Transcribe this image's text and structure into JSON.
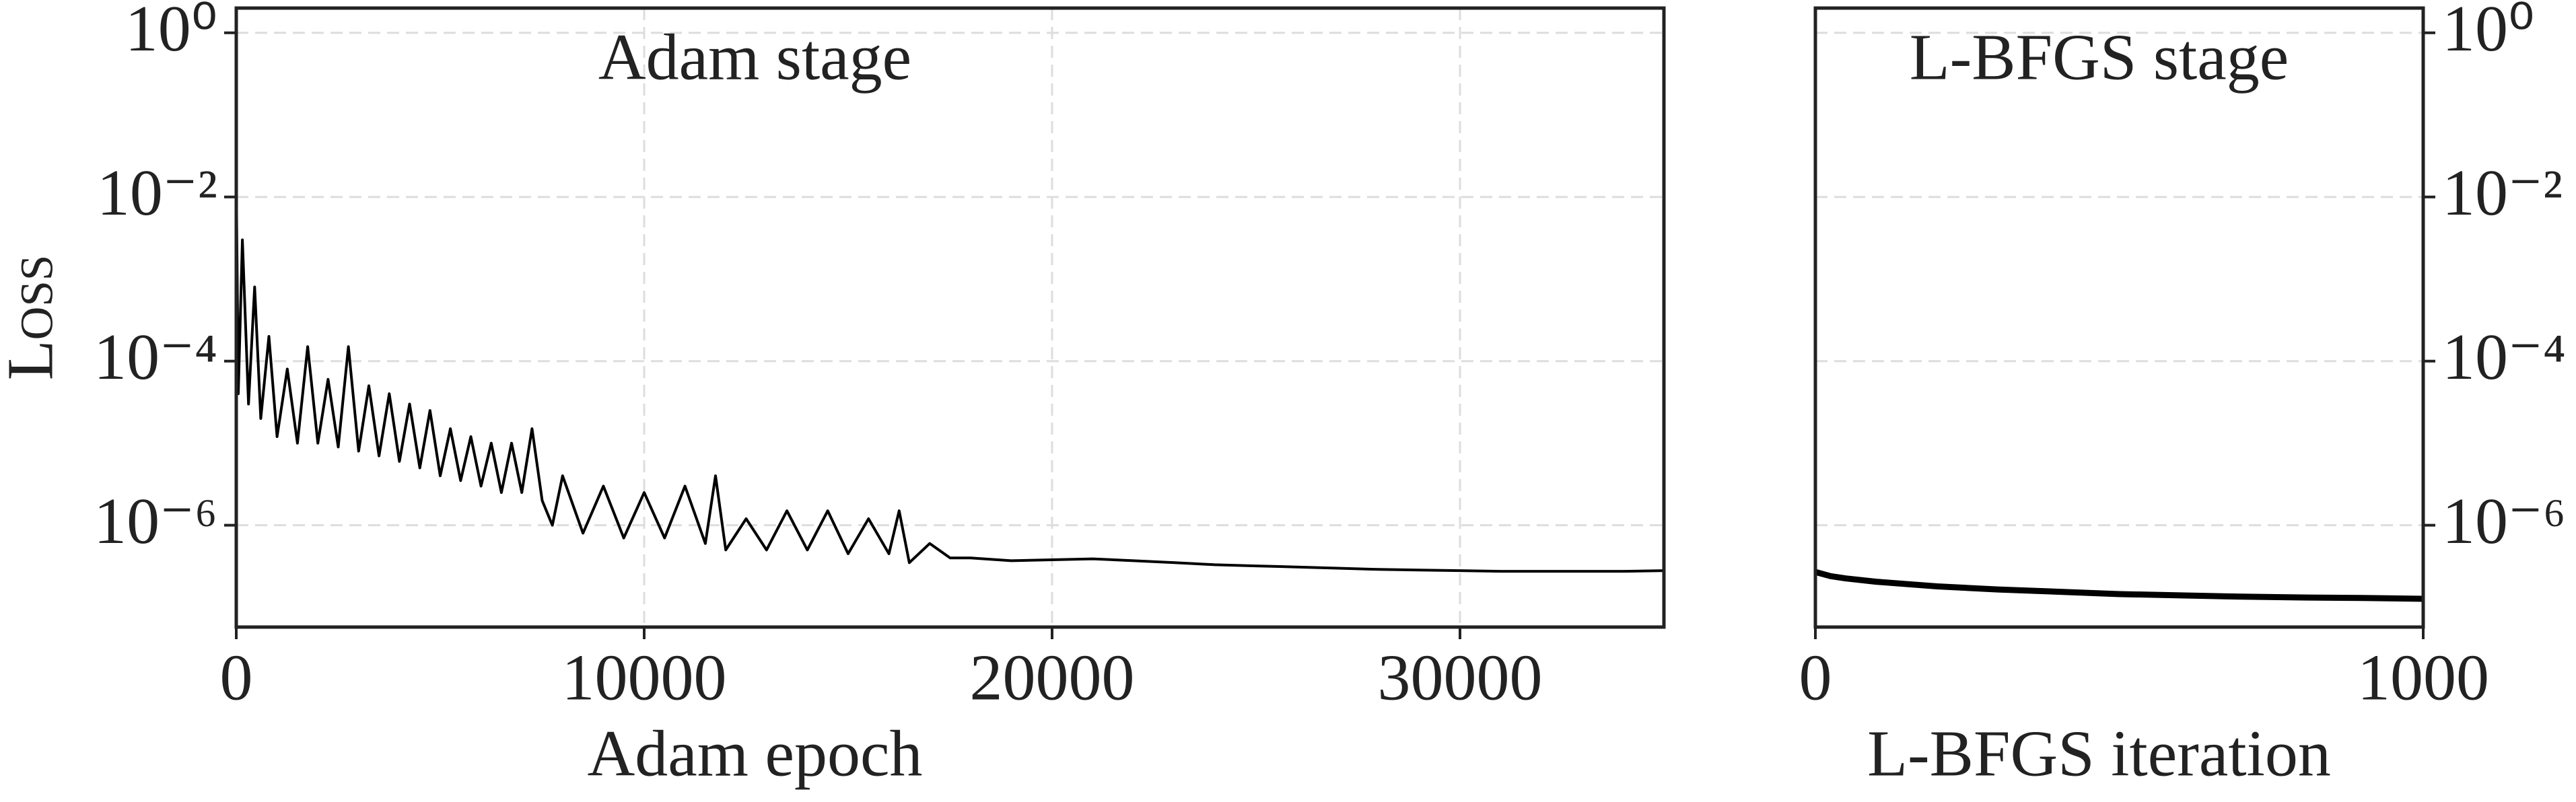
{
  "chart_data": [
    {
      "type": "line",
      "title": "Adam stage",
      "x_label": "Adam epoch",
      "y_label": "Loss",
      "yscale": "log",
      "grid": true,
      "ytick_side": "left",
      "xlim": [
        0,
        35000
      ],
      "xticks": [
        0,
        10000,
        20000,
        30000
      ],
      "ylim": [
        5.75e-08,
        2
      ],
      "yticks": [
        {
          "value": 1,
          "label": "10⁰"
        },
        {
          "value": 0.01,
          "label": "10⁻²"
        },
        {
          "value": 0.0001,
          "label": "10⁻⁴"
        },
        {
          "value": 1e-06,
          "label": "10⁻⁶"
        }
      ],
      "x": [
        0,
        50,
        150,
        300,
        450,
        600,
        800,
        1000,
        1250,
        1500,
        1750,
        2000,
        2250,
        2500,
        2750,
        3000,
        3250,
        3500,
        3750,
        4000,
        4250,
        4500,
        4750,
        5000,
        5250,
        5500,
        5750,
        6000,
        6250,
        6500,
        6750,
        7000,
        7250,
        7500,
        7750,
        8000,
        8500,
        9000,
        9500,
        10000,
        10500,
        11000,
        11500,
        11750,
        12000,
        12500,
        13000,
        13500,
        14000,
        14500,
        15000,
        15500,
        16000,
        16250,
        16500,
        17000,
        17500,
        18000,
        19000,
        20000,
        21000,
        22000,
        23000,
        24000,
        25000,
        26000,
        27000,
        28000,
        29000,
        30000,
        31000,
        32000,
        33000,
        34000,
        35000
      ],
      "series": [
        {
          "color": "#000000",
          "values": [
            0.018,
            4e-05,
            0.003,
            3e-05,
            0.0008,
            2e-05,
            0.0002,
            1.2e-05,
            8e-05,
            1e-05,
            0.00015,
            1e-05,
            6e-05,
            9e-06,
            0.00015,
            8e-06,
            5e-05,
            7e-06,
            4e-05,
            6e-06,
            3e-05,
            5e-06,
            2.5e-05,
            4e-06,
            1.5e-05,
            3.5e-06,
            1.2e-05,
            3e-06,
            1e-05,
            2.5e-06,
            1e-05,
            2.5e-06,
            1.5e-05,
            2e-06,
            1e-06,
            4e-06,
            8e-07,
            3e-06,
            7e-07,
            2.5e-06,
            7e-07,
            3e-06,
            6e-07,
            4e-06,
            5e-07,
            1.2e-06,
            5e-07,
            1.5e-06,
            5e-07,
            1.5e-06,
            4.5e-07,
            1.2e-06,
            4.5e-07,
            1.5e-06,
            3.5e-07,
            6e-07,
            4e-07,
            4e-07,
            3.7e-07,
            3.8e-07,
            3.9e-07,
            3.7e-07,
            3.5e-07,
            3.3e-07,
            3.2e-07,
            3.1e-07,
            3e-07,
            2.9e-07,
            2.85e-07,
            2.8e-07,
            2.75e-07,
            2.75e-07,
            2.75e-07,
            2.75e-07,
            2.8e-07
          ]
        }
      ]
    },
    {
      "type": "line",
      "title": "L-BFGS stage",
      "x_label": "L-BFGS iteration",
      "yscale": "log",
      "grid": true,
      "ytick_side": "right",
      "xlim": [
        0,
        1000
      ],
      "xticks": [
        0,
        1000
      ],
      "ylim": [
        5.75e-08,
        2
      ],
      "yticks": [
        {
          "value": 1,
          "label": "10⁰"
        },
        {
          "value": 0.01,
          "label": "10⁻²"
        },
        {
          "value": 0.0001,
          "label": "10⁻⁴"
        },
        {
          "value": 1e-06,
          "label": "10⁻⁶"
        }
      ],
      "x": [
        0,
        25,
        50,
        100,
        200,
        300,
        400,
        500,
        600,
        700,
        800,
        900,
        1000
      ],
      "series": [
        {
          "color": "#000000",
          "values": [
            2.7e-07,
            2.4e-07,
            2.25e-07,
            2.05e-07,
            1.8e-07,
            1.65e-07,
            1.55e-07,
            1.45e-07,
            1.4e-07,
            1.35e-07,
            1.32e-07,
            1.3e-07,
            1.27e-07
          ]
        }
      ]
    }
  ]
}
